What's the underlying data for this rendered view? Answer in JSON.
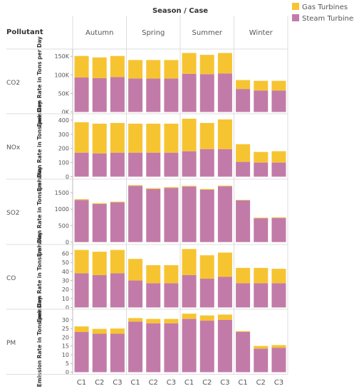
{
  "chart_data": {
    "type": "bar",
    "stacked": true,
    "column_header": "Season / Case",
    "row_header": "Pollutant",
    "ylabel": "Emission Rate in Tons per Day",
    "seasons": [
      "Autumn",
      "Spring",
      "Summer",
      "Winter"
    ],
    "cases": [
      "C1",
      "C2",
      "C3"
    ],
    "legend": {
      "position": "top-right",
      "items": [
        {
          "name": "Gas Turbines",
          "color": "#F7C431"
        },
        {
          "name": "Steam Turbines",
          "color": "#C27BA8"
        }
      ]
    },
    "panels": [
      {
        "pollutant": "CO2",
        "ylim": [
          0,
          160000
        ],
        "ticks": [
          0,
          50000,
          100000,
          150000
        ],
        "tick_labels": [
          "0K",
          "50K",
          "100K",
          "150K"
        ],
        "steam": [
          93000,
          91000,
          94000,
          90000,
          90000,
          90000,
          103000,
          102000,
          104000,
          62000,
          58000,
          58000
        ],
        "gas": [
          58000,
          56000,
          57000,
          50000,
          50000,
          50000,
          56000,
          52000,
          55000,
          24000,
          26000,
          26000
        ]
      },
      {
        "pollutant": "NOx",
        "ylim": [
          0,
          420
        ],
        "ticks": [
          0,
          100,
          200,
          300,
          400
        ],
        "tick_labels": [
          "0",
          "100",
          "200",
          "300",
          "400"
        ],
        "steam": [
          170,
          165,
          170,
          170,
          170,
          170,
          180,
          195,
          195,
          105,
          100,
          100
        ],
        "gas": [
          215,
          210,
          210,
          205,
          205,
          205,
          230,
          185,
          210,
          125,
          75,
          80
        ]
      },
      {
        "pollutant": "SO2",
        "ylim": [
          0,
          1800
        ],
        "ticks": [
          0,
          500,
          1000,
          1500
        ],
        "tick_labels": [
          "0",
          "500",
          "1000",
          "1500"
        ],
        "steam": [
          1275,
          1155,
          1205,
          1705,
          1610,
          1640,
          1685,
          1585,
          1690,
          1265,
          720,
          730
        ],
        "gas": [
          25,
          25,
          20,
          20,
          25,
          25,
          20,
          25,
          20,
          15,
          20,
          20
        ]
      },
      {
        "pollutant": "CO",
        "ylim": [
          0,
          66
        ],
        "ticks": [
          0,
          10,
          20,
          30,
          40,
          50,
          60
        ],
        "tick_labels": [
          "0",
          "10",
          "20",
          "30",
          "40",
          "50",
          "60"
        ],
        "steam": [
          38,
          36,
          38,
          30,
          27,
          27,
          36,
          32,
          34,
          27,
          27,
          27
        ],
        "gas": [
          26,
          26,
          26,
          24,
          20,
          20,
          29,
          26,
          27,
          17,
          17,
          16
        ]
      },
      {
        "pollutant": "PM",
        "ylim": [
          0,
          34
        ],
        "ticks": [
          0,
          5,
          10,
          15,
          20,
          25,
          30
        ],
        "tick_labels": [
          "0",
          "5",
          "10",
          "15",
          "20",
          "25",
          "30"
        ],
        "steam": [
          23,
          22,
          22,
          29,
          28,
          28,
          30.5,
          29.5,
          30,
          23,
          13.5,
          14
        ],
        "gas": [
          3.2,
          2.8,
          3,
          2,
          2.5,
          2.5,
          3,
          3,
          3,
          0.5,
          1.5,
          1.5
        ]
      }
    ]
  }
}
